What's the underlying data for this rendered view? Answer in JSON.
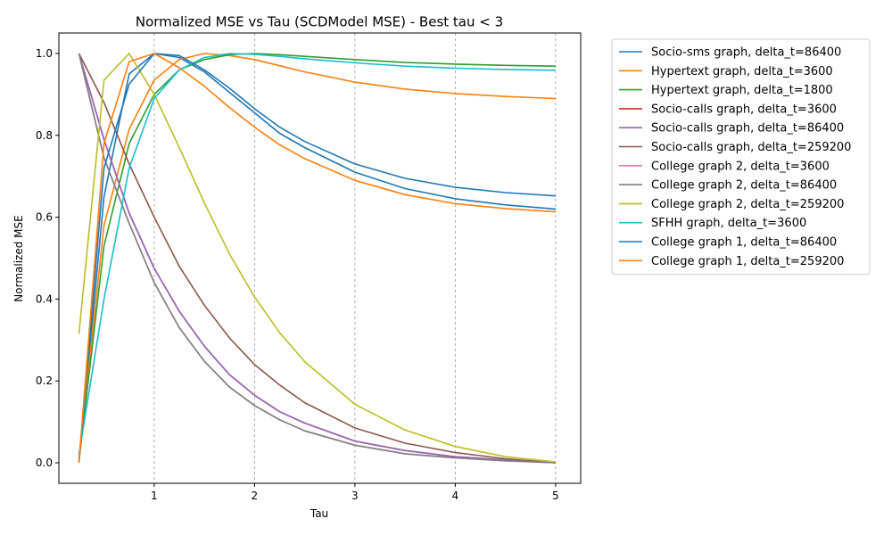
{
  "chart_data": {
    "type": "line",
    "title": "Normalized MSE vs Tau (SCDModel MSE) - Best tau < 3",
    "xlabel": "Tau",
    "ylabel": "Normalized MSE",
    "xlim": [
      0.05,
      5.25
    ],
    "ylim": [
      -0.05,
      1.05
    ],
    "xticks": [
      1,
      2,
      3,
      4,
      5
    ],
    "yticks": [
      0.0,
      0.2,
      0.4,
      0.6,
      0.8,
      1.0
    ],
    "grid": "vertical dashed at x ticks",
    "legend_position": "outside-right",
    "series": [
      {
        "name": "Socio-sms graph, delta_t=86400",
        "color": "#1f77b4",
        "points": [
          [
            0.25,
            0.0
          ],
          [
            0.5,
            0.65
          ],
          [
            0.75,
            0.95
          ],
          [
            1,
            1.0
          ],
          [
            1.25,
            0.99
          ],
          [
            1.5,
            0.955
          ],
          [
            1.75,
            0.905
          ],
          [
            2,
            0.855
          ],
          [
            2.25,
            0.805
          ],
          [
            2.5,
            0.77
          ],
          [
            3,
            0.71
          ],
          [
            3.5,
            0.67
          ],
          [
            4,
            0.645
          ],
          [
            4.5,
            0.63
          ],
          [
            5,
            0.62
          ]
        ]
      },
      {
        "name": "Hypertext graph, delta_t=3600",
        "color": "#ff7f0e",
        "points": [
          [
            0.25,
            0.01
          ],
          [
            0.5,
            0.58
          ],
          [
            0.75,
            0.815
          ],
          [
            1,
            0.935
          ],
          [
            1.25,
            0.985
          ],
          [
            1.5,
            1.0
          ],
          [
            1.75,
            0.995
          ],
          [
            2,
            0.985
          ],
          [
            2.25,
            0.97
          ],
          [
            2.5,
            0.955
          ],
          [
            3,
            0.93
          ],
          [
            3.5,
            0.913
          ],
          [
            4,
            0.902
          ],
          [
            4.5,
            0.895
          ],
          [
            5,
            0.89
          ]
        ]
      },
      {
        "name": "Hypertext graph, delta_t=1800",
        "color": "#2ca02c",
        "points": [
          [
            0.25,
            0.005
          ],
          [
            0.5,
            0.53
          ],
          [
            0.75,
            0.78
          ],
          [
            1,
            0.9
          ],
          [
            1.25,
            0.96
          ],
          [
            1.5,
            0.985
          ],
          [
            1.75,
            0.997
          ],
          [
            2,
            1.0
          ],
          [
            2.25,
            0.997
          ],
          [
            2.5,
            0.993
          ],
          [
            3,
            0.985
          ],
          [
            3.5,
            0.978
          ],
          [
            4,
            0.974
          ],
          [
            4.5,
            0.971
          ],
          [
            5,
            0.969
          ]
        ]
      },
      {
        "name": "Socio-calls graph, delta_t=3600",
        "color": "#d62728",
        "points": [
          [
            0.25,
            1.0
          ],
          [
            0.5,
            0.79
          ],
          [
            0.75,
            0.61
          ],
          [
            1,
            0.475
          ],
          [
            1.25,
            0.37
          ],
          [
            1.5,
            0.285
          ],
          [
            1.75,
            0.215
          ],
          [
            2,
            0.165
          ],
          [
            2.25,
            0.125
          ],
          [
            2.5,
            0.097
          ],
          [
            3,
            0.053
          ],
          [
            3.5,
            0.03
          ],
          [
            4,
            0.015
          ],
          [
            4.5,
            0.007
          ],
          [
            5,
            0.0
          ]
        ]
      },
      {
        "name": "Socio-calls graph, delta_t=86400",
        "color": "#9467bd",
        "points": [
          [
            0.25,
            1.0
          ],
          [
            0.5,
            0.79
          ],
          [
            0.75,
            0.61
          ],
          [
            1,
            0.475
          ],
          [
            1.25,
            0.37
          ],
          [
            1.5,
            0.285
          ],
          [
            1.75,
            0.215
          ],
          [
            2,
            0.165
          ],
          [
            2.25,
            0.125
          ],
          [
            2.5,
            0.097
          ],
          [
            3,
            0.053
          ],
          [
            3.5,
            0.03
          ],
          [
            4,
            0.015
          ],
          [
            4.5,
            0.007
          ],
          [
            5,
            0.0
          ]
        ]
      },
      {
        "name": "Socio-calls graph, delta_t=259200",
        "color": "#8c564b",
        "points": [
          [
            0.25,
            1.0
          ],
          [
            0.5,
            0.88
          ],
          [
            0.75,
            0.73
          ],
          [
            1,
            0.6
          ],
          [
            1.25,
            0.48
          ],
          [
            1.5,
            0.385
          ],
          [
            1.75,
            0.305
          ],
          [
            2,
            0.24
          ],
          [
            2.25,
            0.19
          ],
          [
            2.5,
            0.147
          ],
          [
            3,
            0.085
          ],
          [
            3.5,
            0.048
          ],
          [
            4,
            0.025
          ],
          [
            4.5,
            0.01
          ],
          [
            5,
            0.0
          ]
        ]
      },
      {
        "name": "College graph 2, delta_t=3600",
        "color": "#e377c2",
        "points": [
          [
            0.25,
            1.0
          ],
          [
            0.5,
            0.745
          ],
          [
            0.75,
            0.585
          ],
          [
            1,
            0.44
          ],
          [
            1.25,
            0.33
          ],
          [
            1.5,
            0.248
          ],
          [
            1.75,
            0.185
          ],
          [
            2,
            0.14
          ],
          [
            2.25,
            0.105
          ],
          [
            2.5,
            0.078
          ],
          [
            3,
            0.043
          ],
          [
            3.5,
            0.022
          ],
          [
            4,
            0.012
          ],
          [
            4.5,
            0.005
          ],
          [
            5,
            0.0
          ]
        ]
      },
      {
        "name": "College graph 2, delta_t=86400",
        "color": "#7f7f7f",
        "points": [
          [
            0.25,
            1.0
          ],
          [
            0.5,
            0.745
          ],
          [
            0.75,
            0.585
          ],
          [
            1,
            0.44
          ],
          [
            1.25,
            0.33
          ],
          [
            1.5,
            0.248
          ],
          [
            1.75,
            0.185
          ],
          [
            2,
            0.14
          ],
          [
            2.25,
            0.105
          ],
          [
            2.5,
            0.078
          ],
          [
            3,
            0.043
          ],
          [
            3.5,
            0.022
          ],
          [
            4,
            0.012
          ],
          [
            4.5,
            0.005
          ],
          [
            5,
            0.0
          ]
        ]
      },
      {
        "name": "College graph 2, delta_t=259200",
        "color": "#bcbd22",
        "points": [
          [
            0.25,
            0.315
          ],
          [
            0.5,
            0.935
          ],
          [
            0.75,
            1.0
          ],
          [
            1,
            0.9
          ],
          [
            1.25,
            0.77
          ],
          [
            1.5,
            0.635
          ],
          [
            1.75,
            0.51
          ],
          [
            2,
            0.405
          ],
          [
            2.25,
            0.318
          ],
          [
            2.5,
            0.247
          ],
          [
            3,
            0.143
          ],
          [
            3.5,
            0.08
          ],
          [
            4,
            0.04
          ],
          [
            4.5,
            0.015
          ],
          [
            5,
            0.002
          ]
        ]
      },
      {
        "name": "SFHH graph, delta_t=3600",
        "color": "#17becf",
        "points": [
          [
            0.25,
            0.02
          ],
          [
            0.5,
            0.4
          ],
          [
            0.75,
            0.72
          ],
          [
            1,
            0.89
          ],
          [
            1.25,
            0.96
          ],
          [
            1.5,
            0.99
          ],
          [
            1.75,
            1.0
          ],
          [
            2,
            0.998
          ],
          [
            2.25,
            0.993
          ],
          [
            2.5,
            0.987
          ],
          [
            3,
            0.977
          ],
          [
            3.5,
            0.969
          ],
          [
            4,
            0.964
          ],
          [
            4.5,
            0.961
          ],
          [
            5,
            0.959
          ]
        ]
      },
      {
        "name": "College graph 1, delta_t=86400",
        "color": "#1f77b4",
        "points": [
          [
            0.25,
            0.0
          ],
          [
            0.5,
            0.72
          ],
          [
            0.75,
            0.925
          ],
          [
            1,
            1.0
          ],
          [
            1.25,
            0.995
          ],
          [
            1.5,
            0.96
          ],
          [
            1.75,
            0.915
          ],
          [
            2,
            0.865
          ],
          [
            2.25,
            0.82
          ],
          [
            2.5,
            0.785
          ],
          [
            3,
            0.73
          ],
          [
            3.5,
            0.695
          ],
          [
            4,
            0.673
          ],
          [
            4.5,
            0.66
          ],
          [
            5,
            0.652
          ]
        ]
      },
      {
        "name": "College graph 1, delta_t=259200",
        "color": "#ff7f0e",
        "points": [
          [
            0.25,
            0.0
          ],
          [
            0.5,
            0.78
          ],
          [
            0.75,
            0.98
          ],
          [
            1,
            1.0
          ],
          [
            1.25,
            0.965
          ],
          [
            1.5,
            0.92
          ],
          [
            1.75,
            0.868
          ],
          [
            2,
            0.82
          ],
          [
            2.25,
            0.777
          ],
          [
            2.5,
            0.743
          ],
          [
            3,
            0.69
          ],
          [
            3.5,
            0.655
          ],
          [
            4,
            0.633
          ],
          [
            4.5,
            0.621
          ],
          [
            5,
            0.613
          ]
        ]
      }
    ]
  }
}
